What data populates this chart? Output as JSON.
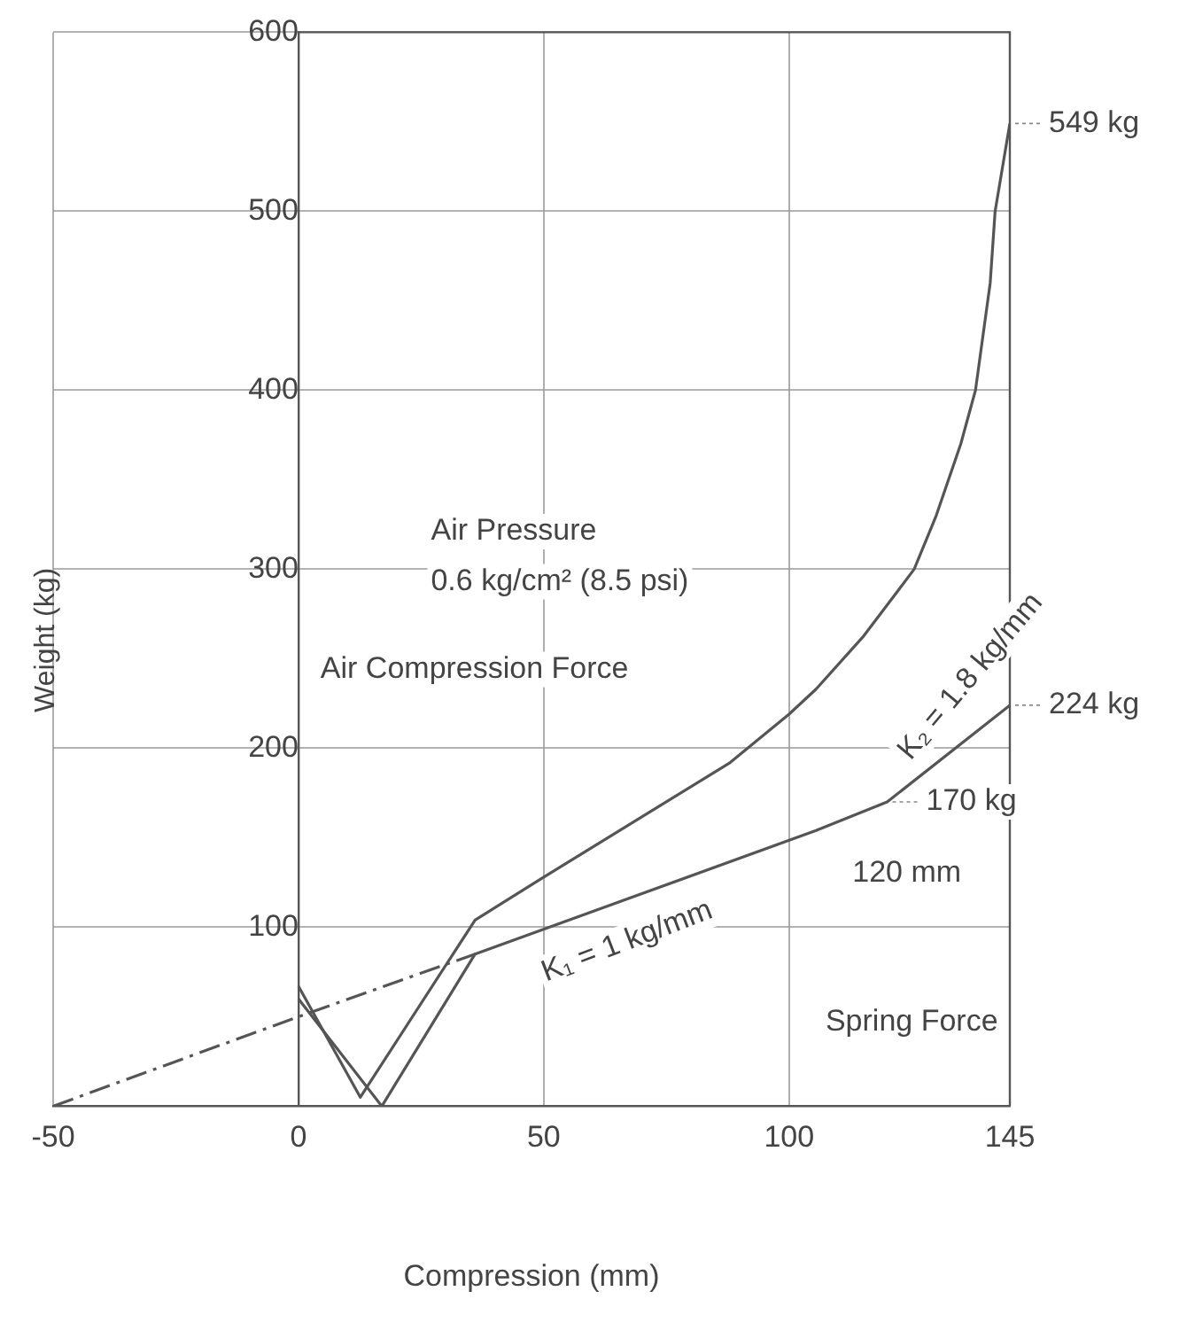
{
  "chart_data": {
    "type": "line",
    "xlabel": "Compression (mm)",
    "ylabel": "Weight (kg)",
    "series": [
      {
        "color": "#555555",
        "x": [
          0,
          12.6,
          36,
          50,
          88,
          100,
          105.5,
          115,
          120,
          125.5,
          130,
          135,
          138,
          141,
          142,
          145
        ],
        "values": [
          67,
          5,
          104,
          128,
          192,
          219,
          233,
          262,
          280,
          300,
          330,
          370,
          400,
          460,
          500,
          549
        ]
      },
      {
        "color": "#555555",
        "x": [
          0,
          17,
          36,
          105.5,
          120,
          145
        ],
        "values": [
          60,
          0,
          85,
          154,
          170,
          224
        ]
      },
      {
        "color": "#555555",
        "line_style": "dashed",
        "x": [
          -50,
          0,
          36
        ],
        "values": [
          0,
          50,
          85
        ]
      }
    ],
    "xlim": [
      -50,
      145
    ],
    "xticks": [
      -50,
      0,
      50,
      100,
      145
    ],
    "ylim": [
      0,
      600
    ],
    "yticks": [
      100,
      200,
      300,
      400,
      500,
      600
    ],
    "grid": true,
    "legend": false,
    "marker": "none",
    "annotations": [
      "549 kg",
      "224 kg",
      "170 kg",
      "Air Pressure",
      "0.6 kg/cm² (8.5 psi)",
      "Air Compression Force",
      "K₁ = 1 kg/mm",
      "K₂ = 1.8 kg/mm",
      "120 mm",
      "Spring Force"
    ]
  }
}
